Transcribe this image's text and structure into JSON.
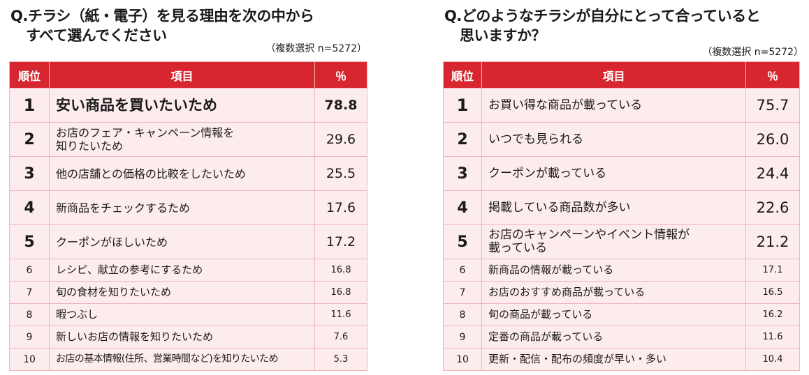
{
  "left": {
    "question_line1": "Q.チラシ（紙・電子）を見る理由を次の中から",
    "question_line2": "すべて選んでください",
    "note": "（複数選択 n=5272）",
    "headers": {
      "rank": "順位",
      "item": "項目",
      "pct": "％"
    },
    "rows": [
      {
        "rank": "1",
        "item": "安い商品を買いたいため",
        "pct": "78.8"
      },
      {
        "rank": "2",
        "item": "お店のフェア・キャンペーン情報を\n知りたいため",
        "pct": "29.6"
      },
      {
        "rank": "3",
        "item": "他の店舗との価格の比較をしたいため",
        "pct": "25.5"
      },
      {
        "rank": "4",
        "item": "新商品をチェックするため",
        "pct": "17.6"
      },
      {
        "rank": "5",
        "item": "クーポンがほしいため",
        "pct": "17.2"
      },
      {
        "rank": "6",
        "item": "レシピ、献立の参考にするため",
        "pct": "16.8"
      },
      {
        "rank": "7",
        "item": "旬の食材を知りたいため",
        "pct": "16.8"
      },
      {
        "rank": "8",
        "item": "暇つぶし",
        "pct": "11.6"
      },
      {
        "rank": "9",
        "item": "新しいお店の情報を知りたいため",
        "pct": "7.6"
      },
      {
        "rank": "10",
        "item": "お店の基本情報(住所、営業時間など)を知りたいため",
        "pct": "5.3"
      }
    ]
  },
  "right": {
    "question_line1": "Q.どのようなチラシが自分にとって合っていると",
    "question_line2": "思いますか？",
    "note": "（複数選択 n=5272）",
    "headers": {
      "rank": "順位",
      "item": "項目",
      "pct": "％"
    },
    "rows": [
      {
        "rank": "1",
        "item": "お買い得な商品が載っている",
        "pct": "75.7"
      },
      {
        "rank": "2",
        "item": "いつでも見られる",
        "pct": "26.0"
      },
      {
        "rank": "3",
        "item": "クーポンが載っている",
        "pct": "24.4"
      },
      {
        "rank": "4",
        "item": "掲載している商品数が多い",
        "pct": "22.6"
      },
      {
        "rank": "5",
        "item": "お店のキャンペーンやイベント情報が\n載っている",
        "pct": "21.2"
      },
      {
        "rank": "6",
        "item": "新商品の情報が載っている",
        "pct": "17.1"
      },
      {
        "rank": "7",
        "item": "お店のおすすめ商品が載っている",
        "pct": "16.5"
      },
      {
        "rank": "8",
        "item": "旬の商品が載っている",
        "pct": "16.2"
      },
      {
        "rank": "9",
        "item": "定番の商品が載っている",
        "pct": "11.6"
      },
      {
        "rank": "10",
        "item": "更新・配信・配布の頻度が早い・多い",
        "pct": "10.4"
      }
    ]
  },
  "colors": {
    "header_bg": "#d7262f",
    "cell_bg": "#fdecee",
    "border": "#f2b6b9"
  }
}
